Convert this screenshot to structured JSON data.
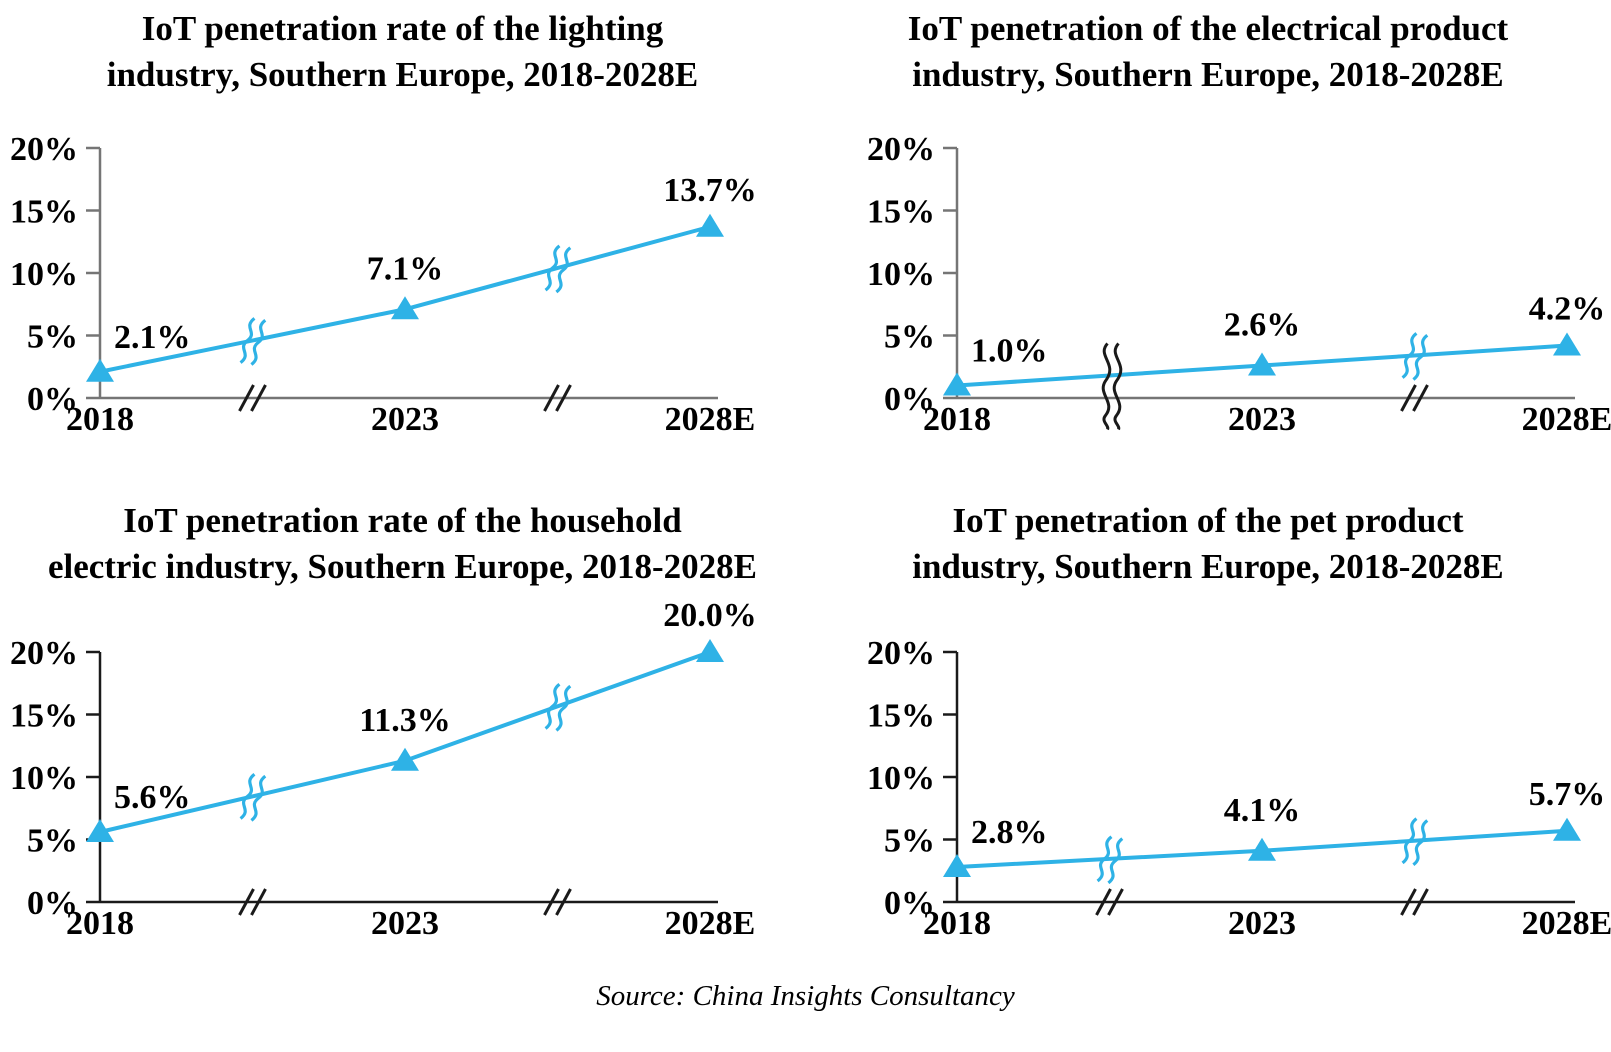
{
  "page": {
    "background": "#ffffff"
  },
  "style": {
    "line_color": "#2EB2E6",
    "marker_shape": "triangle-up",
    "top_axis_color": "#757575",
    "bottom_axis_color": "#1a1a1a",
    "break_slash_color": "#1a1a1a",
    "text_color": "#000000"
  },
  "source_note": "Source: China Insights Consultancy",
  "chart_data": [
    {
      "type": "line",
      "position": "top-left",
      "title": "IoT penetration rate of the lighting industry, Southern Europe, 2018-2028E",
      "title_lines": [
        "IoT penetration rate of the lighting",
        "industry, Southern Europe, 2018-2028E"
      ],
      "x": [
        "2018",
        "2023",
        "2028E"
      ],
      "values": [
        2.1,
        7.1,
        13.7
      ],
      "point_labels": [
        "2.1%",
        "7.1%",
        "13.7%"
      ],
      "ylim": [
        0,
        20
      ],
      "y_tick_values": [
        0,
        5,
        10,
        15,
        20
      ],
      "y_ticks": [
        "0%",
        "5%",
        "10%",
        "15%",
        "20%"
      ],
      "axis_break_fractions": [
        0.25,
        0.75
      ],
      "first_break_style": "slash",
      "axis_color": "#757575",
      "grid": "off",
      "legend": "none"
    },
    {
      "type": "line",
      "position": "top-right",
      "title": "IoT penetration of the electrical product industry, Southern Europe, 2018-2028E",
      "title_lines": [
        "IoT penetration of the electrical product",
        "industry, Southern Europe, 2018-2028E"
      ],
      "x": [
        "2018",
        "2023",
        "2028E"
      ],
      "values": [
        1.0,
        2.6,
        4.2
      ],
      "point_labels": [
        "1.0%",
        "2.6%",
        "4.2%"
      ],
      "ylim": [
        0,
        20
      ],
      "y_tick_values": [
        0,
        5,
        10,
        15,
        20
      ],
      "y_ticks": [
        "0%",
        "5%",
        "10%",
        "15%",
        "20%"
      ],
      "axis_break_fractions": [
        0.25,
        0.75
      ],
      "first_break_style": "wavy-tall",
      "axis_color": "#757575",
      "grid": "off",
      "legend": "none"
    },
    {
      "type": "line",
      "position": "bottom-left",
      "title": "IoT penetration rate of the household electric industry, Southern Europe, 2018-2028E",
      "title_lines": [
        "IoT penetration rate of the household",
        "electric industry, Southern Europe, 2018-2028E"
      ],
      "x": [
        "2018",
        "2023",
        "2028E"
      ],
      "values": [
        5.6,
        11.3,
        20.0
      ],
      "point_labels": [
        "5.6%",
        "11.3%",
        "20.0%"
      ],
      "ylim": [
        0,
        20
      ],
      "y_tick_values": [
        0,
        5,
        10,
        15,
        20
      ],
      "y_ticks": [
        "0%",
        "5%",
        "10%",
        "15%",
        "20%"
      ],
      "axis_break_fractions": [
        0.25,
        0.75
      ],
      "first_break_style": "slash",
      "axis_color": "#1a1a1a",
      "grid": "off",
      "legend": "none"
    },
    {
      "type": "line",
      "position": "bottom-right",
      "title": "IoT penetration of the pet product industry, Southern Europe, 2018-2028E",
      "title_lines": [
        "IoT penetration of the pet product",
        "industry, Southern Europe, 2018-2028E"
      ],
      "x": [
        "2018",
        "2023",
        "2028E"
      ],
      "values": [
        2.8,
        4.1,
        5.7
      ],
      "point_labels": [
        "2.8%",
        "4.1%",
        "5.7%"
      ],
      "ylim": [
        0,
        20
      ],
      "y_tick_values": [
        0,
        5,
        10,
        15,
        20
      ],
      "y_ticks": [
        "0%",
        "5%",
        "10%",
        "15%",
        "20%"
      ],
      "axis_break_fractions": [
        0.25,
        0.75
      ],
      "first_break_style": "slash",
      "axis_color": "#1a1a1a",
      "grid": "off",
      "legend": "none"
    }
  ]
}
